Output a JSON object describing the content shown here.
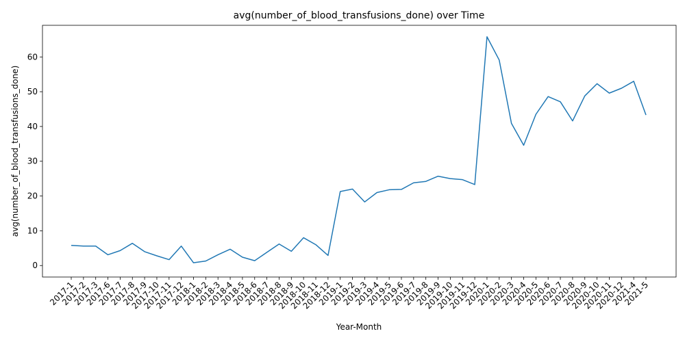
{
  "chart_data": {
    "type": "line",
    "title": "avg(number_of_blood_transfusions_done) over Time",
    "xlabel": "Year-Month",
    "ylabel": "avg(number_of_blood_transfusions_done)",
    "ylim": [
      -3.3,
      69.1
    ],
    "yticks": [
      0,
      10,
      20,
      30,
      40,
      50,
      60
    ],
    "grid": false,
    "legend": "none",
    "categories": [
      "2017-1",
      "2017-2",
      "2017-3",
      "2017-6",
      "2017-7",
      "2017-8",
      "2017-9",
      "2017-10",
      "2017-11",
      "2017-12",
      "2018-1",
      "2018-2",
      "2018-3",
      "2018-4",
      "2018-5",
      "2018-6",
      "2018-7",
      "2018-8",
      "2018-9",
      "2018-10",
      "2018-11",
      "2018-12",
      "2019-1",
      "2019-2",
      "2019-3",
      "2019-4",
      "2019-5",
      "2019-6",
      "2019-7",
      "2019-8",
      "2019-9",
      "2019-10",
      "2019-11",
      "2019-12",
      "2020-1",
      "2020-2",
      "2020-3",
      "2020-4",
      "2020-5",
      "2020-6",
      "2020-7",
      "2020-8",
      "2020-9",
      "2020-10",
      "2020-11",
      "2020-12",
      "2021-4",
      "2021-5"
    ],
    "series": [
      {
        "color": "#1f77b4",
        "values": [
          5.8,
          5.6,
          5.6,
          3.1,
          4.3,
          6.4,
          4.0,
          2.8,
          1.7,
          5.6,
          0.8,
          1.3,
          3.1,
          4.7,
          2.4,
          1.4,
          3.8,
          6.2,
          4.1,
          8.0,
          6.0,
          2.9,
          21.3,
          22.0,
          18.3,
          21.0,
          21.8,
          21.9,
          23.8,
          24.2,
          25.7,
          25.0,
          24.7,
          23.3,
          65.8,
          59.1,
          40.9,
          34.6,
          43.5,
          48.6,
          47.1,
          41.6,
          48.8,
          52.3,
          49.6,
          51.0,
          53.0,
          43.3
        ]
      }
    ]
  }
}
